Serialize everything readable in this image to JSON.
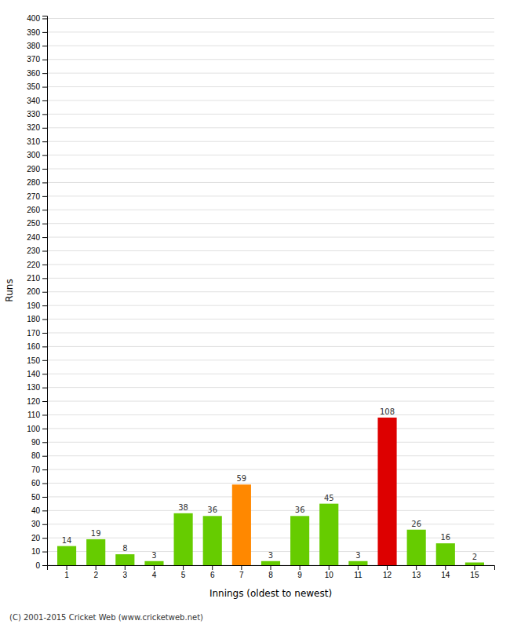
{
  "chart_data": {
    "type": "bar",
    "categories": [
      "1",
      "2",
      "3",
      "4",
      "5",
      "6",
      "7",
      "8",
      "9",
      "10",
      "11",
      "12",
      "13",
      "14",
      "15"
    ],
    "values": [
      14,
      19,
      8,
      3,
      38,
      36,
      59,
      3,
      36,
      45,
      3,
      108,
      26,
      16,
      2
    ],
    "colors": [
      "#66cc00",
      "#66cc00",
      "#66cc00",
      "#66cc00",
      "#66cc00",
      "#66cc00",
      "#ff8800",
      "#66cc00",
      "#66cc00",
      "#66cc00",
      "#66cc00",
      "#dd0000",
      "#66cc00",
      "#66cc00",
      "#66cc00"
    ],
    "x_label": "Innings (oldest to newest)",
    "y_label": "Runs",
    "annotations": [
      "(C) 2001-2015 Cricket Web (www.cricketweb.net)"
    ],
    "ylim": [
      0,
      402
    ],
    "yticks": [
      0,
      10,
      20,
      30,
      40,
      50,
      60,
      70,
      80,
      90,
      100,
      110,
      120,
      130,
      140,
      150,
      160,
      170,
      180,
      190,
      200,
      210,
      220,
      230,
      240,
      250,
      260,
      270,
      280,
      290,
      300,
      310,
      320,
      330,
      340,
      350,
      360,
      370,
      380,
      390,
      400
    ],
    "grid": true,
    "data_labels": true
  }
}
